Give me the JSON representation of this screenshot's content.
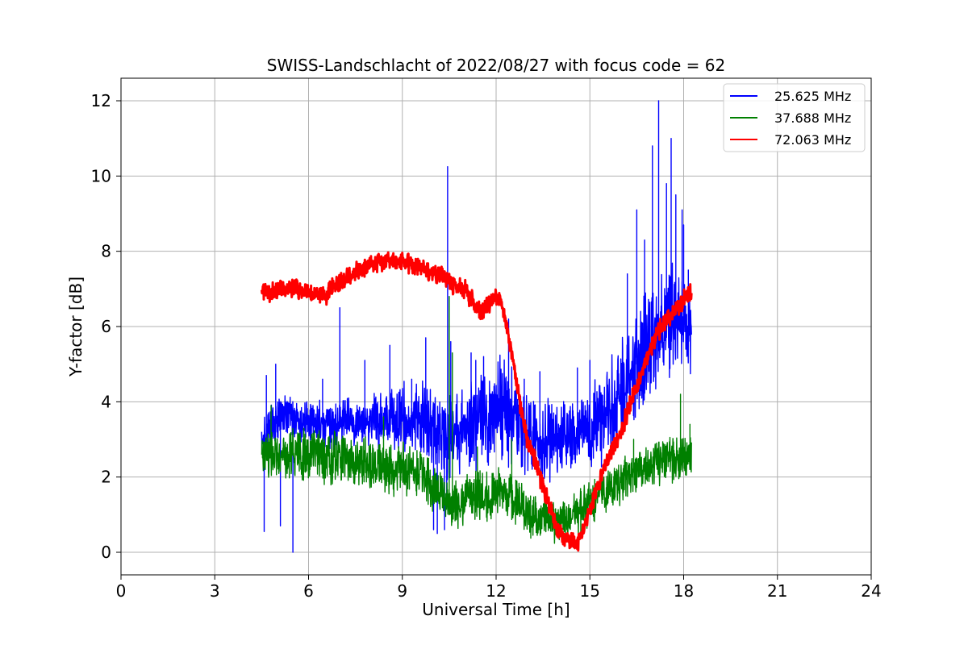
{
  "chart_data": {
    "type": "line",
    "title": "SWISS-Landschlacht of 2022/08/27 with focus code = 62",
    "xlabel": "Universal Time [h]",
    "ylabel": "Y-factor [dB]",
    "xlim": [
      0,
      24
    ],
    "ylim": [
      -0.6,
      12.6
    ],
    "xticks": [
      0,
      3,
      6,
      9,
      12,
      15,
      18,
      21,
      24
    ],
    "yticks": [
      0,
      2,
      4,
      6,
      8,
      10,
      12
    ],
    "grid": true,
    "legend_position": "upper right",
    "series": [
      {
        "name": "25.625 MHz",
        "color": "#0000ff",
        "baseline": [
          [
            4.5,
            3.0
          ],
          [
            5.0,
            3.6
          ],
          [
            6.0,
            3.4
          ],
          [
            7.0,
            3.4
          ],
          [
            8.0,
            3.5
          ],
          [
            9.0,
            3.6
          ],
          [
            9.5,
            3.5
          ],
          [
            10.0,
            3.3
          ],
          [
            10.5,
            3.0
          ],
          [
            11.0,
            3.3
          ],
          [
            11.5,
            3.6
          ],
          [
            12.0,
            3.8
          ],
          [
            12.5,
            3.6
          ],
          [
            13.0,
            3.2
          ],
          [
            13.5,
            3.0
          ],
          [
            14.0,
            3.0
          ],
          [
            14.5,
            3.2
          ],
          [
            15.0,
            3.3
          ],
          [
            15.5,
            3.6
          ],
          [
            16.0,
            4.3
          ],
          [
            16.5,
            5.0
          ],
          [
            17.0,
            5.6
          ],
          [
            17.5,
            6.0
          ],
          [
            18.0,
            6.2
          ],
          [
            18.25,
            5.8
          ]
        ],
        "spread": [
          [
            4.5,
            0.7
          ],
          [
            6.0,
            0.7
          ],
          [
            8.0,
            0.8
          ],
          [
            10.0,
            1.2
          ],
          [
            11.0,
            1.3
          ],
          [
            12.0,
            1.6
          ],
          [
            13.0,
            1.4
          ],
          [
            14.0,
            1.2
          ],
          [
            15.0,
            1.2
          ],
          [
            16.0,
            1.6
          ],
          [
            17.0,
            2.0
          ],
          [
            18.0,
            1.6
          ],
          [
            18.25,
            1.5
          ]
        ],
        "spikes": [
          [
            4.58,
            0.55
          ],
          [
            4.65,
            4.7
          ],
          [
            4.95,
            5.0
          ],
          [
            5.1,
            0.7
          ],
          [
            5.5,
            0.0
          ],
          [
            6.45,
            4.6
          ],
          [
            7.0,
            6.5
          ],
          [
            7.8,
            5.1
          ],
          [
            8.6,
            5.5
          ],
          [
            9.3,
            4.6
          ],
          [
            9.75,
            5.7
          ],
          [
            10.0,
            0.6
          ],
          [
            10.12,
            0.5
          ],
          [
            10.35,
            0.6
          ],
          [
            10.42,
            1.2
          ],
          [
            10.45,
            10.25
          ],
          [
            10.55,
            5.6
          ],
          [
            11.2,
            5.3
          ],
          [
            11.35,
            5.1
          ],
          [
            11.6,
            5.2
          ],
          [
            12.4,
            6.2
          ],
          [
            12.9,
            4.6
          ],
          [
            13.4,
            4.8
          ],
          [
            14.6,
            4.9
          ],
          [
            15.0,
            5.1
          ],
          [
            16.2,
            7.4
          ],
          [
            16.5,
            9.1
          ],
          [
            16.75,
            8.3
          ],
          [
            17.0,
            10.8
          ],
          [
            17.2,
            12.0
          ],
          [
            17.45,
            9.8
          ],
          [
            17.6,
            11.0
          ],
          [
            17.75,
            9.5
          ],
          [
            17.95,
            9.1
          ],
          [
            18.0,
            8.7
          ],
          [
            18.15,
            7.5
          ]
        ]
      },
      {
        "name": "37.688 MHz",
        "color": "#008000",
        "baseline": [
          [
            4.5,
            2.6
          ],
          [
            6.0,
            2.6
          ],
          [
            7.0,
            2.5
          ],
          [
            8.0,
            2.3
          ],
          [
            9.0,
            2.2
          ],
          [
            9.5,
            2.2
          ],
          [
            10.0,
            1.7
          ],
          [
            10.5,
            1.3
          ],
          [
            11.0,
            1.4
          ],
          [
            11.5,
            1.5
          ],
          [
            12.0,
            1.6
          ],
          [
            12.5,
            1.5
          ],
          [
            13.0,
            1.0
          ],
          [
            13.5,
            0.9
          ],
          [
            14.0,
            0.8
          ],
          [
            14.5,
            1.0
          ],
          [
            15.0,
            1.3
          ],
          [
            15.5,
            1.6
          ],
          [
            16.0,
            1.9
          ],
          [
            16.5,
            2.2
          ],
          [
            17.0,
            2.4
          ],
          [
            17.5,
            2.5
          ],
          [
            18.0,
            2.5
          ],
          [
            18.25,
            2.5
          ]
        ],
        "spread": [
          [
            4.5,
            0.8
          ],
          [
            9.0,
            0.8
          ],
          [
            10.5,
            0.8
          ],
          [
            12.0,
            0.8
          ],
          [
            14.0,
            0.7
          ],
          [
            16.0,
            0.7
          ],
          [
            18.25,
            0.7
          ]
        ],
        "spikes": [
          [
            4.8,
            3.9
          ],
          [
            8.4,
            3.6
          ],
          [
            10.5,
            6.8
          ],
          [
            10.6,
            5.3
          ],
          [
            11.4,
            2.8
          ],
          [
            12.5,
            3.0
          ],
          [
            16.4,
            3.0
          ],
          [
            17.9,
            4.2
          ],
          [
            18.2,
            3.4
          ]
        ]
      },
      {
        "name": "72.063 MHz",
        "color": "#ff0000",
        "baseline": [
          [
            4.5,
            6.9
          ],
          [
            5.0,
            6.95
          ],
          [
            5.5,
            7.05
          ],
          [
            6.0,
            6.9
          ],
          [
            6.5,
            6.8
          ],
          [
            7.0,
            7.15
          ],
          [
            7.5,
            7.45
          ],
          [
            8.0,
            7.7
          ],
          [
            8.5,
            7.75
          ],
          [
            9.0,
            7.75
          ],
          [
            9.5,
            7.6
          ],
          [
            10.0,
            7.45
          ],
          [
            10.5,
            7.15
          ],
          [
            11.0,
            7.0
          ],
          [
            11.3,
            6.6
          ],
          [
            11.5,
            6.35
          ],
          [
            12.0,
            6.8
          ],
          [
            12.2,
            6.6
          ],
          [
            12.5,
            5.3
          ],
          [
            12.8,
            3.8
          ],
          [
            13.0,
            3.0
          ],
          [
            13.3,
            2.3
          ],
          [
            13.6,
            1.5
          ],
          [
            14.0,
            0.6
          ],
          [
            14.3,
            0.3
          ],
          [
            14.6,
            0.2
          ],
          [
            14.8,
            0.5
          ],
          [
            15.0,
            1.1
          ],
          [
            15.3,
            1.9
          ],
          [
            15.6,
            2.5
          ],
          [
            16.0,
            3.2
          ],
          [
            16.4,
            4.2
          ],
          [
            16.8,
            5.1
          ],
          [
            17.2,
            5.9
          ],
          [
            17.6,
            6.3
          ],
          [
            18.0,
            6.7
          ],
          [
            18.25,
            6.95
          ]
        ],
        "spread": [
          [
            4.5,
            0.3
          ],
          [
            18.25,
            0.3
          ]
        ],
        "spikes": []
      }
    ]
  }
}
